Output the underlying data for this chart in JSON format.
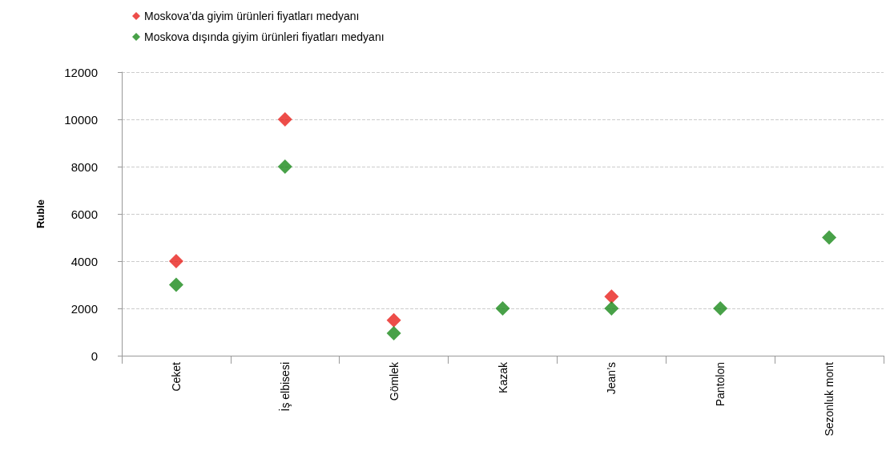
{
  "chart_data": {
    "type": "scatter",
    "ylabel": "Ruble",
    "categories": [
      "Ceket",
      "İş elbisesi",
      "Gömlek",
      "Kazak",
      "Jean’s",
      "Pantolon",
      "Sezonluk mont"
    ],
    "series": [
      {
        "name": "Moskova’da giyim ürünleri fiyatları medyanı",
        "color": "#e8201c",
        "values": [
          4000,
          10000,
          1500,
          null,
          2500,
          null,
          null
        ]
      },
      {
        "name": "Moskova dışında giyim ürünleri fiyatları medyanı",
        "color": "#1a8a1a",
        "values": [
          3000,
          8000,
          950,
          2000,
          2000,
          2000,
          5000
        ]
      }
    ],
    "ylim": [
      0,
      12000
    ],
    "yticks": [
      0,
      2000,
      4000,
      6000,
      8000,
      10000,
      12000
    ],
    "grid": "y",
    "legend": "top left",
    "marker": "diamond"
  }
}
